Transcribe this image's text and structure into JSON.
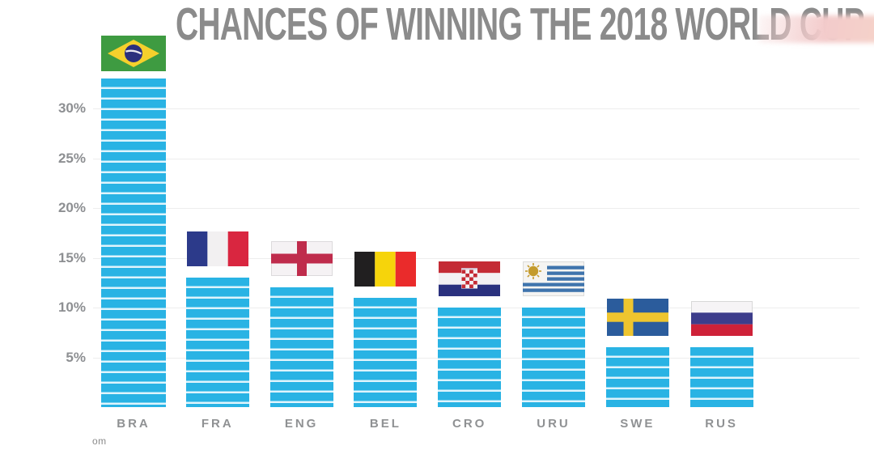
{
  "title": "CHANCES OF WINNING THE 2018 WORLD CUP",
  "watermark_text": "om",
  "colors": {
    "bar": "#29b3e4",
    "bar_stripe": "#dff4fc",
    "title_text": "#8b8b8b",
    "axis_text": "#8d8f92",
    "gridline": "#ededed",
    "corner_blob_pink": "#f3cbcb"
  },
  "chart_data": {
    "type": "bar",
    "title": "CHANCES OF WINNING THE 2018 WORLD CUP",
    "categories": [
      "BRA",
      "FRA",
      "ENG",
      "BEL",
      "CRO",
      "URU",
      "SWE",
      "RUS"
    ],
    "countries": [
      "Brazil",
      "France",
      "England",
      "Belgium",
      "Croatia",
      "Uruguay",
      "Sweden",
      "Russia"
    ],
    "values": [
      33,
      13,
      12,
      11,
      10,
      10,
      6,
      6
    ],
    "value_suffix": "%",
    "xlabel": "",
    "ylabel": "",
    "ylim": [
      0,
      35
    ],
    "y_ticks": [
      5,
      10,
      15,
      20,
      25,
      30
    ],
    "y_tick_labels": [
      "5%",
      "10%",
      "15%",
      "20%",
      "25%",
      "30%"
    ],
    "grid": "faint horizontal lines at each 5% tick",
    "legend_position": "none",
    "bar_style": "cyan bars built of horizontal stripes, national flag above each bar"
  }
}
